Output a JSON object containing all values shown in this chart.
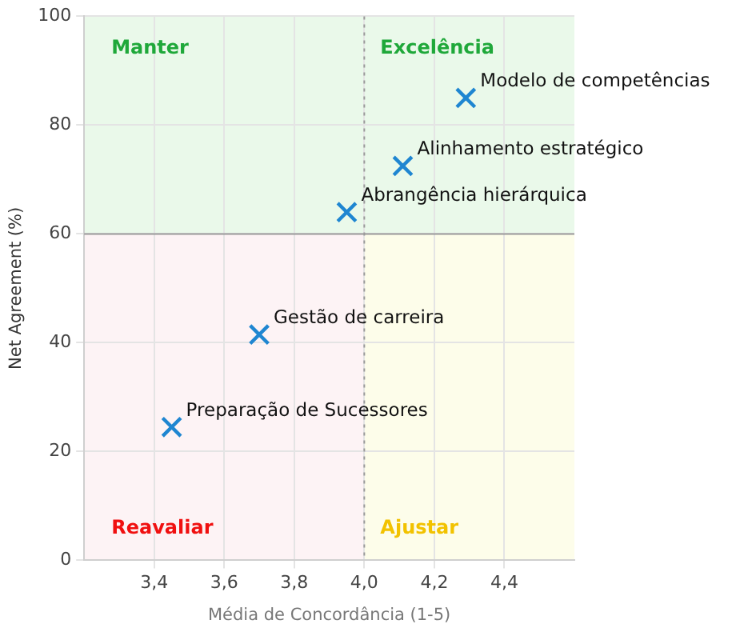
{
  "chart_data": {
    "type": "scatter",
    "xlabel": "Média de Concordância (1-5)",
    "ylabel": "Net Agreement (%)",
    "x": [
      4.29,
      4.11,
      3.95,
      3.7,
      3.45
    ],
    "series": [
      {
        "color": "#1f86d1",
        "values": [
          85,
          72.5,
          64,
          41.5,
          24.5
        ]
      }
    ],
    "marker": "cross",
    "grid": true,
    "xlim": [
      3.2,
      4.6
    ],
    "xticks": [
      {
        "value": 3.4,
        "label": "3,4"
      },
      {
        "value": 3.6,
        "label": "3,6"
      },
      {
        "value": 3.8,
        "label": "3,8"
      },
      {
        "value": 4.0,
        "label": "4,0"
      },
      {
        "value": 4.2,
        "label": "4,2"
      },
      {
        "value": 4.4,
        "label": "4,4"
      }
    ],
    "ylim": [
      0,
      100
    ],
    "yticks": [
      0,
      20,
      40,
      60,
      80,
      100
    ],
    "ref_lines": [
      {
        "axis": "y",
        "value": 60,
        "color": "#9a9a9a",
        "line_style": "solid"
      },
      {
        "axis": "x",
        "value": 4.0,
        "color": "#9a9a9a",
        "line_style": "dotted"
      }
    ],
    "bands": [
      {
        "axis": "y",
        "from": 0,
        "to": 60,
        "color": "#fdf3f5"
      },
      {
        "axis": "x",
        "from": 4.0,
        "to": 4.6,
        "color": "#fdfdea"
      },
      {
        "axis": "y",
        "from": 60,
        "to": 100,
        "color": "#eaf9ea"
      }
    ],
    "annotations": [
      "Manter",
      "Excelência",
      "Reavaliar",
      "Ajustar",
      {
        "text": "Modelo de competências",
        "x": 4.29,
        "y": 85
      },
      {
        "text": "Alinhamento estratégico",
        "x": 4.11,
        "y": 72.5
      },
      {
        "text": "Abrangência hierárquica",
        "x": 3.95,
        "y": 64
      },
      {
        "text": "Gestão de carreira",
        "x": 3.7,
        "y": 41.5
      },
      {
        "text": "Preparação de Sucessores",
        "x": 3.45,
        "y": 24.5
      }
    ]
  }
}
